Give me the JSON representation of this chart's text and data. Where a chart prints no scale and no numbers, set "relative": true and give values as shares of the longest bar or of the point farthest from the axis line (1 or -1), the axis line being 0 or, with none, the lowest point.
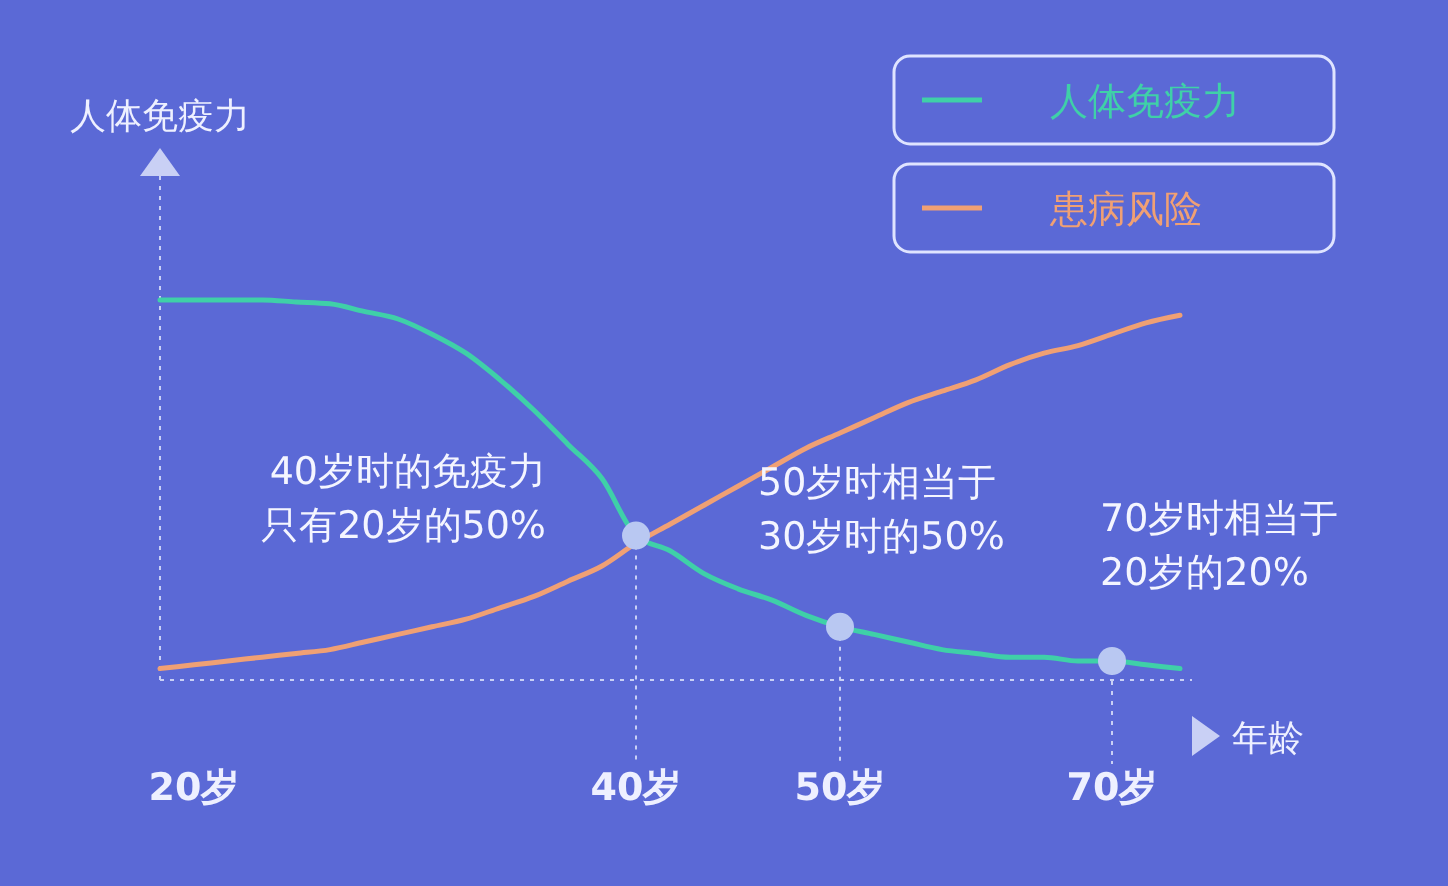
{
  "chart_data": {
    "type": "line",
    "relative": true,
    "ylabel": "人体免疫力",
    "xlabel": "年龄",
    "categories": [
      null,
      "20岁",
      null,
      null,
      null,
      null,
      null,
      null,
      null,
      null,
      null,
      null,
      null,
      null,
      "40岁",
      null,
      null,
      null,
      null,
      null,
      "50岁",
      null,
      null,
      null,
      null,
      null,
      null,
      null,
      "70岁",
      null,
      null
    ],
    "series": [
      {
        "name": "人体免疫力",
        "color": "#3fd0a8",
        "values": [
          1,
          1,
          1,
          1,
          0.995,
          0.99,
          0.97,
          0.95,
          0.91,
          0.86,
          0.79,
          0.71,
          0.62,
          0.53,
          0.38,
          0.34,
          0.28,
          0.24,
          0.21,
          0.17,
          0.14,
          0.12,
          0.1,
          0.08,
          0.07,
          0.06,
          0.06,
          0.05,
          0.05,
          0.04,
          0.03
        ]
      },
      {
        "name": "患病风险",
        "color": "#f0a074",
        "values": [
          0.03,
          0.04,
          0.05,
          0.06,
          0.07,
          0.08,
          0.1,
          0.12,
          0.14,
          0.16,
          0.19,
          0.22,
          0.26,
          0.3,
          0.36,
          0.41,
          0.46,
          0.51,
          0.56,
          0.61,
          0.65,
          0.69,
          0.73,
          0.76,
          0.79,
          0.83,
          0.86,
          0.88,
          0.91,
          0.94,
          0.96
        ]
      }
    ],
    "legend": "top right",
    "marker": "none",
    "line_style": "solid",
    "grid": false,
    "annotations": [
      {
        "text": "40岁时的免疫力只有20岁的50%",
        "x": "40岁",
        "y": 0.38
      },
      {
        "text": "50岁时相当于30岁时的50%",
        "x": "50岁",
        "y": 0.14
      },
      {
        "text": "70岁时相当于20岁的20%",
        "x": "70岁",
        "y": 0.05
      }
    ]
  }
}
